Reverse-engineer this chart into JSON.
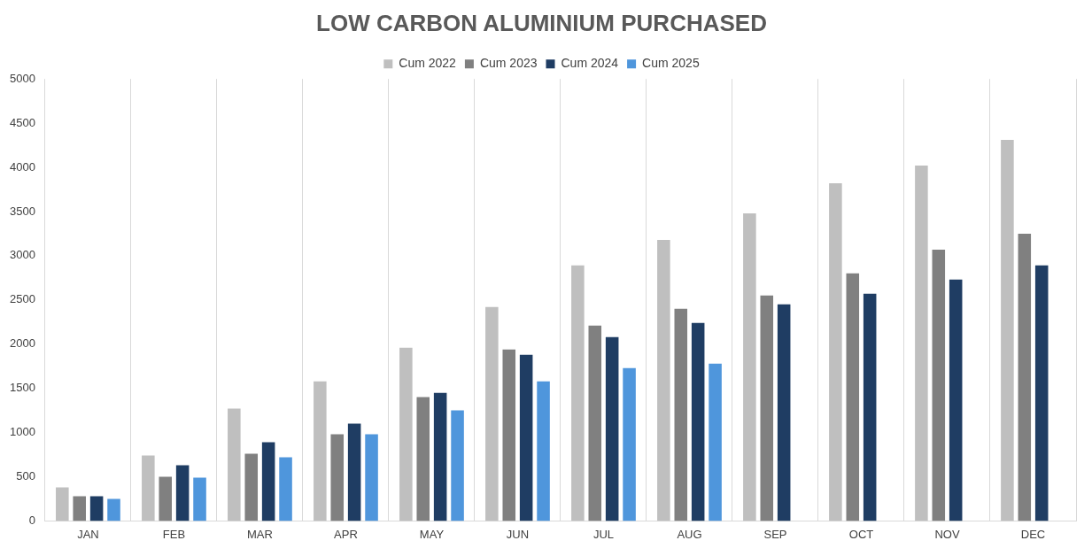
{
  "chart_data": {
    "type": "bar",
    "title": "LOW CARBON ALUMINIUM PURCHASED",
    "categories": [
      "JAN",
      "FEB",
      "MAR",
      "APR",
      "MAY",
      "JUN",
      "JUL",
      "AUG",
      "SEP",
      "OCT",
      "NOV",
      "DEC"
    ],
    "series": [
      {
        "name": "Cum 2022",
        "color": "#bfbfbf",
        "values": [
          380,
          740,
          1270,
          1580,
          1960,
          2420,
          2890,
          3180,
          3480,
          3820,
          4020,
          4310
        ]
      },
      {
        "name": "Cum 2023",
        "color": "#808080",
        "values": [
          280,
          500,
          760,
          980,
          1400,
          1940,
          2210,
          2400,
          2550,
          2800,
          3070,
          3250
        ]
      },
      {
        "name": "Cum 2024",
        "color": "#1f3d63",
        "values": [
          280,
          630,
          890,
          1100,
          1450,
          1880,
          2080,
          2240,
          2450,
          2570,
          2730,
          2890
        ]
      },
      {
        "name": "Cum 2025",
        "color": "#4f96dc",
        "values": [
          250,
          490,
          720,
          980,
          1250,
          1580,
          1730,
          1780,
          null,
          null,
          null,
          null
        ]
      }
    ],
    "ylim": [
      0,
      5000
    ],
    "yticks": [
      0,
      500,
      1000,
      1500,
      2000,
      2500,
      3000,
      3500,
      4000,
      4500,
      5000
    ],
    "grid": "x",
    "legend": "top"
  }
}
